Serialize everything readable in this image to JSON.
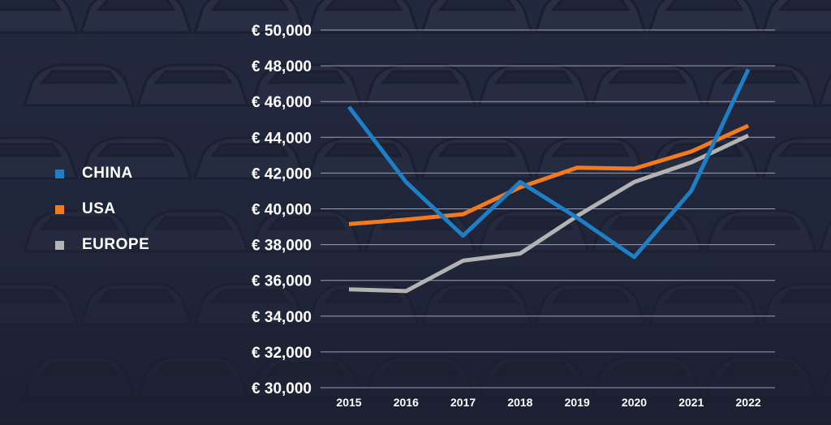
{
  "chart_data": {
    "type": "line",
    "title": "",
    "xlabel": "",
    "ylabel": "",
    "x": [
      "2015",
      "2016",
      "2017",
      "2018",
      "2019",
      "2020",
      "2021",
      "2022"
    ],
    "ylim": [
      30000,
      50000
    ],
    "yticks": [
      30000,
      32000,
      34000,
      36000,
      38000,
      40000,
      42000,
      44000,
      46000,
      48000,
      50000
    ],
    "ytick_labels": [
      "€ 30,000",
      "€ 32,000",
      "€ 34,000",
      "€ 36,000",
      "€ 38,000",
      "€ 40,000",
      "€ 42,000",
      "€ 44,000",
      "€ 46,000",
      "€ 48,000",
      "€ 50,000"
    ],
    "grid": true,
    "legend_position": "left",
    "series": [
      {
        "name": "CHINA",
        "color": "#1e7fc6",
        "values": [
          45700,
          41500,
          38500,
          41500,
          39500,
          37300,
          41000,
          47800
        ]
      },
      {
        "name": "USA",
        "color": "#f47a20",
        "values": [
          39150,
          39400,
          39700,
          41200,
          42300,
          42250,
          43200,
          44650
        ]
      },
      {
        "name": "EUROPE",
        "color": "#b3b3b3",
        "values": [
          35500,
          35400,
          37100,
          37500,
          39600,
          41500,
          42600,
          44100
        ]
      }
    ]
  }
}
